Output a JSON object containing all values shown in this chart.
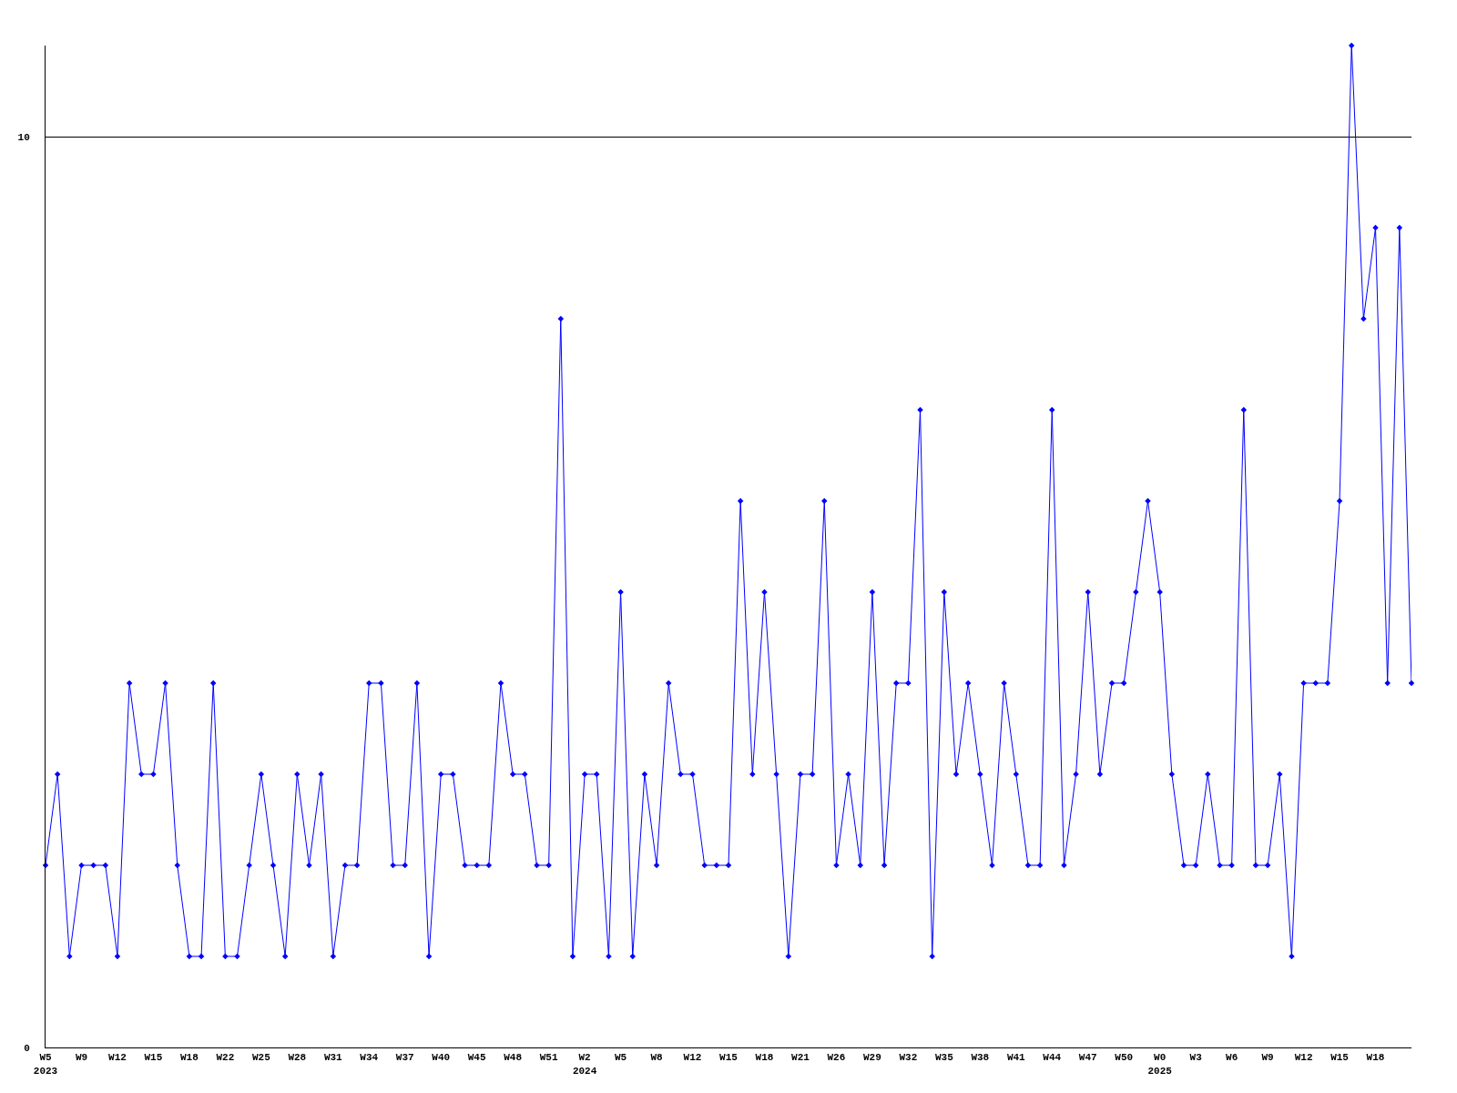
{
  "chart_data": {
    "type": "line",
    "categories": [
      "W5\n2023",
      null,
      null,
      "W9",
      null,
      null,
      "W12",
      null,
      null,
      "W15",
      null,
      null,
      "W18",
      null,
      null,
      "W22",
      null,
      null,
      "W25",
      null,
      null,
      "W28",
      null,
      null,
      "W31",
      null,
      null,
      "W34",
      null,
      null,
      "W37",
      null,
      null,
      "W40",
      null,
      null,
      "W45",
      null,
      null,
      "W48",
      null,
      null,
      "W51",
      null,
      null,
      "W2\n2024",
      null,
      null,
      "W5",
      null,
      null,
      "W8",
      null,
      null,
      "W12",
      null,
      null,
      "W15",
      null,
      null,
      "W18",
      null,
      null,
      "W21",
      null,
      null,
      "W26",
      null,
      null,
      "W29",
      null,
      null,
      "W32",
      null,
      null,
      "W35",
      null,
      null,
      "W38",
      null,
      null,
      "W41",
      null,
      null,
      "W44",
      null,
      null,
      "W47",
      null,
      null,
      "W50",
      null,
      null,
      "W0\n2025",
      null,
      null,
      "W3",
      null,
      null,
      "W6",
      null,
      null,
      "W9",
      null,
      null,
      "W12",
      null,
      null,
      "W15",
      null,
      null,
      "W18",
      null,
      null,
      null
    ],
    "series": [
      {
        "color": "#0000ff",
        "values": [
          2,
          3,
          1,
          2,
          2,
          2,
          1,
          4,
          3,
          3,
          4,
          2,
          1,
          1,
          4,
          1,
          1,
          2,
          3,
          2,
          1,
          3,
          2,
          3,
          1,
          2,
          2,
          4,
          4,
          2,
          2,
          4,
          1,
          3,
          3,
          2,
          2,
          2,
          4,
          3,
          3,
          2,
          2,
          8,
          1,
          3,
          3,
          1,
          5,
          1,
          3,
          2,
          4,
          3,
          3,
          2,
          2,
          2,
          6,
          3,
          5,
          3,
          1,
          3,
          3,
          6,
          2,
          3,
          2,
          5,
          2,
          4,
          4,
          7,
          1,
          5,
          3,
          4,
          3,
          2,
          4,
          3,
          2,
          2,
          7,
          2,
          3,
          5,
          3,
          4,
          4,
          5,
          6,
          5,
          3,
          2,
          2,
          3,
          2,
          2,
          7,
          2,
          2,
          3,
          1,
          4,
          4,
          4,
          6,
          11,
          8,
          9,
          4,
          9,
          4
        ]
      }
    ],
    "ylim": [
      0,
      11
    ],
    "yticks": [
      0,
      10
    ],
    "grid": "y",
    "marker": "diamond",
    "line_style": "solid"
  }
}
